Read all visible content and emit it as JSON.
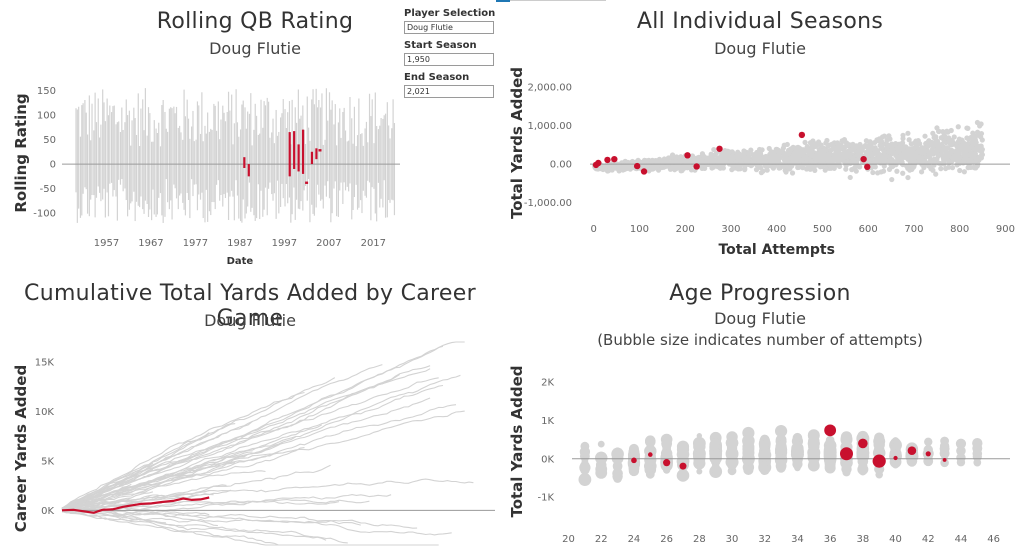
{
  "controls": {
    "player_selection": {
      "label": "Player Selection",
      "value": "Doug Flutie"
    },
    "start_season": {
      "label": "Start Season",
      "value": "1,950"
    },
    "end_season": {
      "label": "End Season",
      "value": "2,021"
    }
  },
  "colors": {
    "highlight": "#c8102e",
    "background_series": "#d3d3d3",
    "zero_line": "#9a9a9a"
  },
  "chart_data": [
    {
      "type": "line",
      "title": "Rolling QB Rating",
      "subtitle": "Doug Flutie",
      "xlabel": "Date",
      "ylabel": "Rolling Rating",
      "xticks": [
        1957,
        1967,
        1977,
        1987,
        1997,
        2007,
        2017
      ],
      "yticks": [
        150,
        100,
        50,
        0,
        -50,
        -100
      ],
      "xlim": [
        1947,
        2023
      ],
      "ylim": [
        -130,
        175
      ],
      "background_note": "all other players shown as gray vertical season bands 1950-2021",
      "series": [
        {
          "name": "Doug Flutie",
          "segments": [
            {
              "x": 1988.0,
              "lo": -8,
              "hi": 14
            },
            {
              "x": 1989.0,
              "lo": -25,
              "hi": 0
            },
            {
              "x": 1998.2,
              "lo": -25,
              "hi": 65
            },
            {
              "x": 1999.2,
              "lo": -10,
              "hi": 67
            },
            {
              "x": 2000.2,
              "lo": -15,
              "hi": 40
            },
            {
              "x": 2001.2,
              "lo": -20,
              "hi": 70
            },
            {
              "x": 2002.0,
              "lo": -38,
              "hi": -38
            },
            {
              "x": 2003.2,
              "lo": 0,
              "hi": 25
            },
            {
              "x": 2004.2,
              "lo": 10,
              "hi": 32
            },
            {
              "x": 2005.0,
              "lo": 28,
              "hi": 28
            }
          ]
        }
      ]
    },
    {
      "type": "scatter",
      "title": "All Individual Seasons",
      "subtitle": "Doug Flutie",
      "xlabel": "Total Attempts",
      "ylabel": "Total Yards Added",
      "xticks": [
        0,
        100,
        200,
        300,
        400,
        500,
        600,
        700,
        800,
        900
      ],
      "yticks": [
        2000,
        1000,
        0,
        -1000
      ],
      "ytick_labels": [
        "2,000.00",
        "1,000.00",
        "0.00",
        "-1,000.00"
      ],
      "xlim": [
        -30,
        910
      ],
      "ylim": [
        -1400,
        2500
      ],
      "series": [
        {
          "name": "Doug Flutie",
          "points": [
            [
              5,
              -20
            ],
            [
              10,
              30
            ],
            [
              30,
              110
            ],
            [
              45,
              130
            ],
            [
              95,
              -50
            ],
            [
              110,
              -190
            ],
            [
              205,
              230
            ],
            [
              225,
              -60
            ],
            [
              275,
              400
            ],
            [
              455,
              760
            ],
            [
              590,
              130
            ],
            [
              598,
              -70
            ]
          ]
        }
      ]
    },
    {
      "type": "line",
      "title": "Cumulative Total Yards Added by Career Game",
      "subtitle": "Doug Flutie",
      "xlabel": "",
      "ylabel": "Career Yards Added",
      "yticks": [
        15000,
        10000,
        5000,
        0
      ],
      "ytick_labels": [
        "15K",
        "10K",
        "5K",
        "0K"
      ],
      "xlim": [
        0,
        300
      ],
      "ylim": [
        -3500,
        17000
      ],
      "series": [
        {
          "name": "Doug Flutie",
          "points": [
            [
              0,
              0
            ],
            [
              8,
              50
            ],
            [
              15,
              -100
            ],
            [
              22,
              -250
            ],
            [
              28,
              50
            ],
            [
              35,
              100
            ],
            [
              42,
              350
            ],
            [
              48,
              500
            ],
            [
              55,
              650
            ],
            [
              62,
              700
            ],
            [
              70,
              850
            ],
            [
              77,
              950
            ],
            [
              84,
              1200
            ],
            [
              90,
              1050
            ],
            [
              96,
              1100
            ],
            [
              102,
              1300
            ]
          ]
        }
      ]
    },
    {
      "type": "scatter",
      "title": "Age Progression",
      "subtitle": "Doug Flutie",
      "note": "(Bubble size indicates number of attempts)",
      "xlabel": "",
      "ylabel": "Total Yards Added",
      "xticks": [
        20,
        22,
        24,
        26,
        28,
        30,
        32,
        34,
        36,
        38,
        40,
        42,
        44,
        46
      ],
      "yticks": [
        2000,
        1000,
        0,
        -1000
      ],
      "ytick_labels": [
        "2K",
        "1K",
        "0K",
        "-1K"
      ],
      "xlim": [
        19.6,
        47
      ],
      "ylim": [
        -1800,
        2700
      ],
      "series": [
        {
          "name": "Doug Flutie",
          "points": [
            [
              24,
              -40,
              50
            ],
            [
              25,
              110,
              25
            ],
            [
              26,
              -100,
              120
            ],
            [
              27,
              -190,
              110
            ],
            [
              36,
              740,
              450
            ],
            [
              37,
              130,
              590
            ],
            [
              38,
              400,
              275
            ],
            [
              39,
              -60,
              600
            ],
            [
              40,
              20,
              15
            ],
            [
              41,
              210,
              205
            ],
            [
              42,
              130,
              40
            ],
            [
              43,
              -30,
              10
            ]
          ]
        }
      ]
    }
  ]
}
